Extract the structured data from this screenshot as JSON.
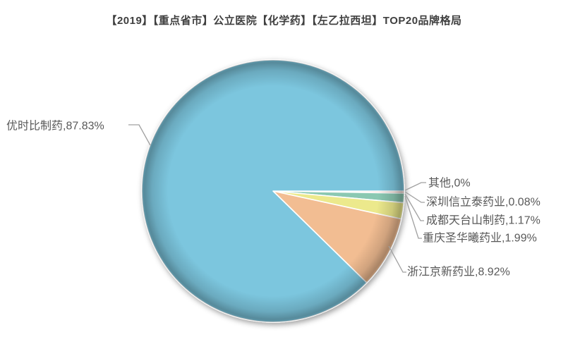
{
  "title": "【2019】【重点省市】公立医院【化学药】【左乙拉西坦】TOP20品牌格局",
  "chart_data": {
    "type": "pie",
    "title": "【2019】【重点省市】公立医院【化学药】【左乙拉西坦】TOP20品牌格局",
    "unit": "%",
    "start_angle_deg": 0,
    "direction": "clockwise",
    "legend_position": "none",
    "grid": false,
    "background": "#ffffff",
    "label_color": "#595959",
    "leader_line_color": "#a0a0a0",
    "slices": [
      {
        "name": "其他",
        "value": 0,
        "display": "其他,0%",
        "color": "#c9c9c9"
      },
      {
        "name": "深圳信立泰药业",
        "value": 0.08,
        "display": "深圳信立泰药业,0.08%",
        "color": "#efc4ba"
      },
      {
        "name": "成都天台山制药",
        "value": 1.17,
        "display": "成都天台山制药,1.17%",
        "color": "#8bc8b2"
      },
      {
        "name": "重庆圣华曦药业",
        "value": 1.99,
        "display": "重庆圣华曦药业,1.99%",
        "color": "#ece98c"
      },
      {
        "name": "浙江京新药业",
        "value": 8.92,
        "display": "浙江京新药业,8.92%",
        "color": "#f2bd92"
      },
      {
        "name": "优时比制药",
        "value": 87.83,
        "display": "优时比制药,87.83%",
        "color": "#7cc6de"
      }
    ]
  }
}
